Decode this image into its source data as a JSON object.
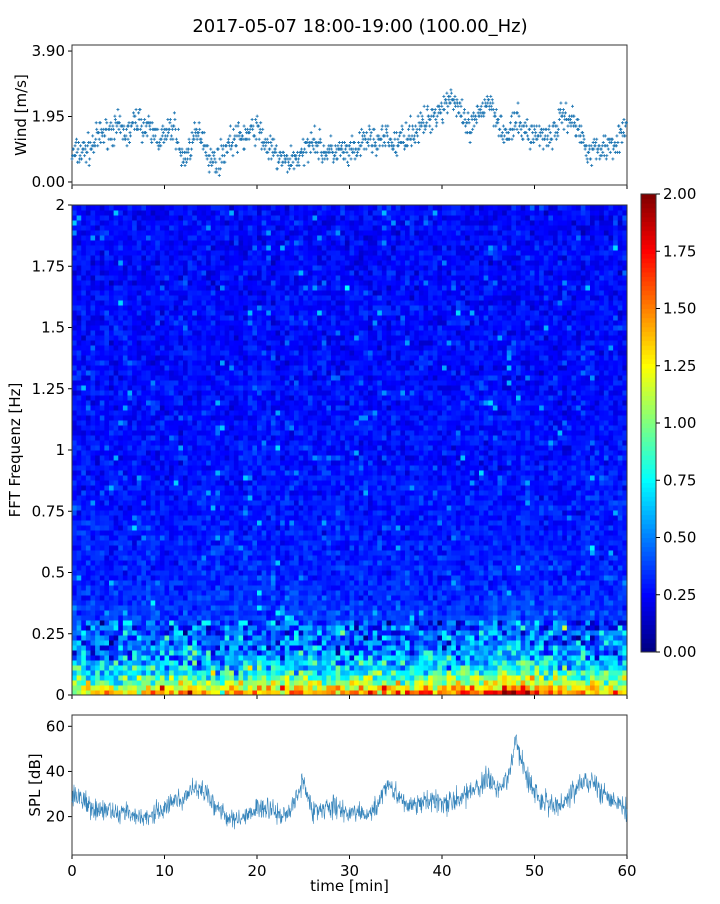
{
  "title": "2017-05-07 18:00-19:00 (100.00_Hz)",
  "chart_data": [
    {
      "type": "scatter",
      "ylabel": "Wind [m/s]",
      "xlim": [
        0,
        60
      ],
      "ylim": [
        -0.09,
        4.08
      ],
      "yticks": [
        "0.00",
        "1.95",
        "3.90"
      ],
      "ytick_values": [
        0,
        1.95,
        3.9
      ],
      "marker": "+",
      "color": "#1f77b4",
      "x": [
        0,
        1,
        2,
        3,
        4,
        5,
        6,
        7,
        8,
        9,
        10,
        11,
        12,
        13,
        14,
        15,
        16,
        17,
        18,
        19,
        20,
        21,
        22,
        23,
        24,
        25,
        26,
        27,
        28,
        29,
        30,
        31,
        32,
        33,
        34,
        35,
        36,
        37,
        38,
        39,
        40,
        41,
        42,
        43,
        44,
        45,
        46,
        47,
        48,
        49,
        50,
        51,
        52,
        53,
        54,
        55,
        56,
        57,
        58,
        59,
        60
      ],
      "y": [
        0.8,
        0.9,
        1.0,
        1.4,
        1.5,
        1.6,
        1.4,
        1.9,
        1.6,
        1.4,
        1.3,
        1.7,
        0.6,
        1.2,
        1.5,
        0.6,
        0.7,
        1.2,
        1.3,
        1.4,
        1.6,
        1.1,
        0.8,
        0.6,
        0.7,
        0.8,
        1.4,
        0.9,
        0.9,
        0.9,
        0.8,
        1.0,
        1.3,
        1.2,
        1.3,
        1.1,
        1.4,
        1.5,
        1.7,
        2.0,
        2.2,
        2.6,
        2.0,
        1.5,
        2.0,
        2.5,
        1.9,
        1.3,
        1.8,
        1.5,
        1.4,
        1.4,
        1.4,
        2.0,
        1.9,
        1.4,
        0.9,
        1.0,
        1.1,
        1.3,
        1.5
      ]
    },
    {
      "type": "heatmap",
      "ylabel": "FFT Frequenz [Hz]",
      "xlim": [
        0,
        60
      ],
      "ylim": [
        0,
        2
      ],
      "yticks": [
        "0",
        "0.25",
        "0.5",
        "0.75",
        "1",
        "1.25",
        "1.5",
        "1.75",
        "2"
      ],
      "ytick_values": [
        0,
        0.25,
        0.5,
        0.75,
        1,
        1.25,
        1.5,
        1.75,
        2
      ],
      "colormap": "jet",
      "color_range": [
        0,
        2
      ],
      "colorbar_ticks": [
        "0.00",
        "0.25",
        "0.50",
        "0.75",
        "1.00",
        "1.25",
        "1.50",
        "1.75",
        "2.00"
      ],
      "colorbar_tick_values": [
        0,
        0.25,
        0.5,
        0.75,
        1,
        1.25,
        1.5,
        1.75,
        2
      ],
      "low_freq_level_per_min": [
        1.0,
        1.1,
        1.0,
        1.0,
        1.1,
        1.0,
        1.0,
        1.1,
        1.1,
        1.2,
        1.1,
        1.2,
        1.3,
        1.4,
        1.3,
        1.2,
        1.1,
        1.2,
        1.3,
        1.2,
        1.3,
        1.2,
        1.2,
        1.3,
        1.2,
        1.3,
        1.5,
        1.2,
        1.3,
        1.2,
        1.3,
        1.3,
        1.3,
        1.3,
        1.4,
        1.4,
        1.3,
        1.3,
        1.4,
        1.5,
        1.4,
        1.4,
        1.5,
        1.5,
        1.5,
        1.6,
        1.5,
        1.7,
        1.8,
        1.9,
        1.8,
        1.6,
        1.5,
        1.4,
        1.3,
        1.4,
        1.4,
        1.3,
        1.3,
        1.4,
        1.4
      ]
    },
    {
      "type": "line",
      "ylabel": "SPL [dB]",
      "xlabel": "time [min]",
      "xlim": [
        0,
        60
      ],
      "ylim": [
        3,
        65
      ],
      "yticks": [
        "20",
        "40",
        "60"
      ],
      "ytick_values": [
        20,
        40,
        60
      ],
      "xticks": [
        "0",
        "10",
        "20",
        "30",
        "40",
        "50",
        "60"
      ],
      "xtick_values": [
        0,
        10,
        20,
        30,
        40,
        50,
        60
      ],
      "color": "#1f77b4",
      "x": [
        0,
        1,
        2,
        3,
        4,
        5,
        6,
        7,
        8,
        9,
        10,
        11,
        12,
        13,
        14,
        15,
        16,
        17,
        18,
        19,
        20,
        21,
        22,
        23,
        24,
        25,
        26,
        27,
        28,
        29,
        30,
        31,
        32,
        33,
        34,
        35,
        36,
        37,
        38,
        39,
        40,
        41,
        42,
        43,
        44,
        45,
        46,
        47,
        48,
        49,
        50,
        51,
        52,
        53,
        54,
        55,
        56,
        57,
        58,
        59,
        60
      ],
      "y": [
        30,
        29,
        24,
        23,
        22,
        21,
        22,
        21,
        20,
        22,
        24,
        27,
        28,
        33,
        33,
        27,
        23,
        20,
        19,
        22,
        23,
        24,
        22,
        21,
        25,
        36,
        22,
        24,
        25,
        24,
        22,
        22,
        21,
        24,
        35,
        30,
        26,
        25,
        26,
        27,
        27,
        26,
        28,
        30,
        33,
        38,
        32,
        35,
        53,
        40,
        30,
        27,
        24,
        26,
        30,
        34,
        36,
        32,
        28,
        25,
        23
      ]
    }
  ]
}
